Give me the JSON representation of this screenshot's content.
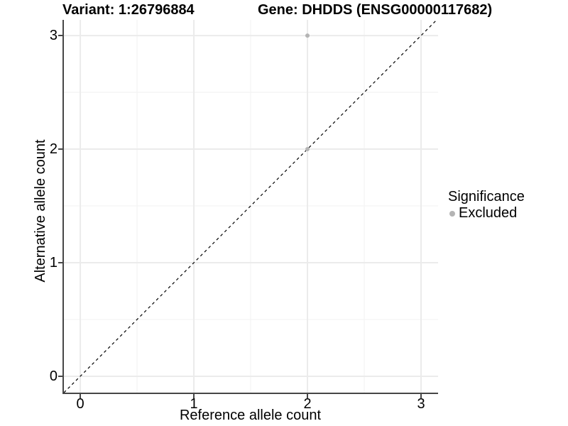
{
  "chart_data": {
    "type": "scatter",
    "title_left": "Variant: 1:26796884",
    "title_right": "Gene: DHDDS (ENSG00000117682)",
    "xlabel": "Reference allele count",
    "ylabel": "Alternative allele count",
    "xlim": [
      -0.144,
      3.15
    ],
    "ylim": [
      -0.144,
      3.138
    ],
    "x_ticks": [
      0,
      1,
      2,
      3
    ],
    "y_ticks": [
      0,
      1,
      2,
      3
    ],
    "x_minor_ticks": [
      0.5,
      1.5,
      2.5
    ],
    "y_minor_ticks": [
      0.5,
      1.5,
      2.5
    ],
    "grid": "major+minor",
    "legend_position": "right-center",
    "identity_line": {
      "style": "dashed",
      "slope": 1,
      "intercept": 0,
      "color": "#000000"
    },
    "series": [
      {
        "name": "Excluded",
        "color": "#b4b4b4",
        "points": [
          [
            2,
            2
          ],
          [
            2,
            3
          ]
        ]
      }
    ],
    "legend": {
      "title": "Significance",
      "entries": [
        {
          "label": "Excluded",
          "color": "#b4b4b4"
        }
      ]
    }
  },
  "colors": {
    "background": "#ffffff",
    "axis_line": "#464646",
    "grid_major": "#ebebeb",
    "grid_minor": "#f4f4f4",
    "text": "#000000"
  }
}
